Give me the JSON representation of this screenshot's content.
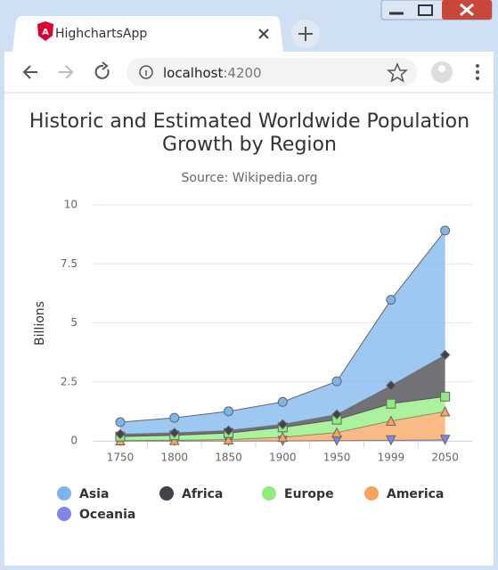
{
  "browser": {
    "tab_title": "HighchartsApp",
    "url_host": "localhost",
    "url_port": ":4200"
  },
  "chart_data": {
    "type": "area",
    "stacking": "normal",
    "title": "Historic and Estimated Worldwide Population Growth by Region",
    "subtitle": "Source: Wikipedia.org",
    "y_label": "Billions",
    "categories": [
      "1750",
      "1800",
      "1850",
      "1900",
      "1950",
      "1999",
      "2050"
    ],
    "ylim": [
      0,
      10
    ],
    "yticks": [
      0,
      2.5,
      5,
      7.5,
      10
    ],
    "grid": true,
    "series": [
      {
        "name": "Asia",
        "color": "#7cb5ec",
        "marker": "circle",
        "values": [
          0.502,
          0.635,
          0.809,
          0.947,
          1.402,
          3.634,
          5.268
        ]
      },
      {
        "name": "Africa",
        "color": "#434348",
        "marker": "diamond",
        "values": [
          0.106,
          0.107,
          0.111,
          0.133,
          0.221,
          0.767,
          1.766
        ]
      },
      {
        "name": "Europe",
        "color": "#90ed7d",
        "marker": "square",
        "values": [
          0.163,
          0.203,
          0.276,
          0.408,
          0.547,
          0.729,
          0.628
        ]
      },
      {
        "name": "America",
        "color": "#f7a35c",
        "marker": "triangle",
        "values": [
          0.018,
          0.031,
          0.054,
          0.156,
          0.339,
          0.818,
          1.201
        ]
      },
      {
        "name": "Oceania",
        "color": "#8085e9",
        "marker": "triangle-down",
        "values": [
          0.002,
          0.002,
          0.002,
          0.006,
          0.013,
          0.03,
          0.046
        ]
      }
    ]
  }
}
